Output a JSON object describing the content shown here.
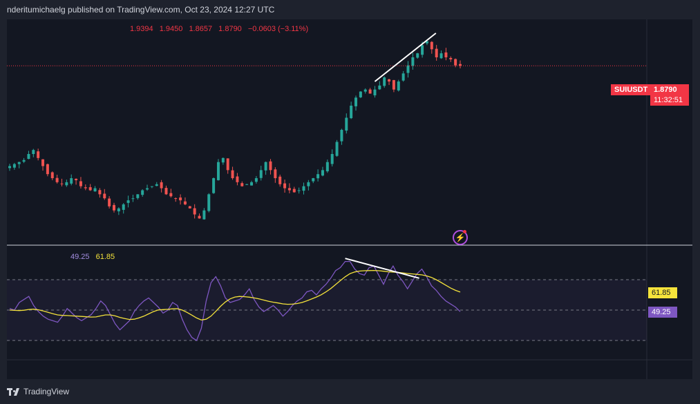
{
  "header": {
    "text": "nderitumichaelg published on TradingView.com, Oct 23, 2024 12:27 UTC"
  },
  "ohlc": {
    "open": "1.9394",
    "high": "1.9450",
    "low": "1.8657",
    "close": "1.8790",
    "change": "−0.0603 (−3.11%)"
  },
  "symbol_badge": "SUIUSDT",
  "price_badge": "1.8790",
  "countdown_badge": "11:32:51",
  "rsi_legend": {
    "rsi": "49.25",
    "ma": "61.85"
  },
  "rsi_badges": {
    "ma": "61.85",
    "rsi": "49.25"
  },
  "footer": {
    "brand": "TradingView"
  },
  "colors": {
    "up": "#26a69a",
    "down": "#ef5350",
    "rsi": "#7e57c2",
    "rsi_ma": "#f5e33b",
    "background": "#131722"
  },
  "chart_data": [
    {
      "type": "candlestick",
      "symbol": "SUIUSDT",
      "last_close": 1.879,
      "y_range_approx": [
        1.48,
        1.96
      ],
      "price_path": [
        1.63,
        1.635,
        1.64,
        1.645,
        1.66,
        1.67,
        1.65,
        1.63,
        1.61,
        1.6,
        1.59,
        1.585,
        1.59,
        1.6,
        1.595,
        1.58,
        1.575,
        1.57,
        1.575,
        1.56,
        1.55,
        1.53,
        1.52,
        1.525,
        1.535,
        1.545,
        1.55,
        1.56,
        1.57,
        1.575,
        1.58,
        1.585,
        1.575,
        1.56,
        1.555,
        1.55,
        1.545,
        1.535,
        1.525,
        1.51,
        1.5,
        1.52,
        1.56,
        1.6,
        1.64,
        1.65,
        1.62,
        1.6,
        1.59,
        1.58,
        1.585,
        1.59,
        1.6,
        1.62,
        1.64,
        1.62,
        1.6,
        1.585,
        1.575,
        1.57,
        1.565,
        1.57,
        1.58,
        1.59,
        1.6,
        1.61,
        1.62,
        1.64,
        1.66,
        1.69,
        1.72,
        1.75,
        1.78,
        1.8,
        1.815,
        1.82,
        1.81,
        1.82,
        1.83,
        1.85,
        1.84,
        1.82,
        1.84,
        1.86,
        1.88,
        1.9,
        1.91,
        1.93,
        1.94,
        1.92,
        1.9,
        1.91,
        1.9,
        1.895,
        1.88,
        1.879
      ],
      "annotation": "rising trendline over the recent highs"
    },
    {
      "type": "line",
      "name": "RSI",
      "last_values": {
        "rsi": 49.25,
        "ma": 61.85
      },
      "rsi_path": [
        51,
        50,
        55,
        57,
        59,
        53,
        49,
        46,
        44,
        43,
        42,
        46,
        51,
        48,
        45,
        43,
        45,
        47,
        51,
        56,
        53,
        47,
        41,
        37,
        40,
        43,
        49,
        53,
        56,
        58,
        55,
        52,
        48,
        50,
        55,
        53,
        44,
        37,
        32,
        30,
        38,
        56,
        68,
        72,
        66,
        58,
        55,
        56,
        57,
        60,
        64,
        57,
        52,
        49,
        51,
        53,
        50,
        46,
        49,
        53,
        56,
        58,
        62,
        63,
        60,
        64,
        67,
        71,
        76,
        78,
        82,
        82,
        77,
        74,
        73,
        78,
        79,
        73,
        67,
        74,
        79,
        73,
        69,
        64,
        69,
        74,
        77,
        72,
        66,
        63,
        59,
        56,
        54,
        52,
        49
      ],
      "ma_path": [
        50,
        49.8,
        49.7,
        49.9,
        50.4,
        50.6,
        50.2,
        49.4,
        48.5,
        47.6,
        46.8,
        46.5,
        46.4,
        46.2,
        46,
        45.8,
        45.6,
        45.4,
        45.5,
        46.2,
        46.8,
        46.8,
        46.2,
        45.2,
        44.4,
        43.8,
        44,
        44.9,
        46,
        47.5,
        49,
        50.1,
        50.3,
        50.5,
        50.8,
        50.9,
        50,
        48.5,
        46.7,
        44.8,
        43.5,
        44,
        46,
        49.2,
        52.5,
        55.3,
        57.4,
        58.6,
        59,
        58.8,
        58.5,
        58,
        57.4,
        56.6,
        55.8,
        55.2,
        54.7,
        54.1,
        53.8,
        53.9,
        54.3,
        55,
        56.1,
        57.3,
        58.6,
        60.1,
        62,
        64.2,
        66.8,
        69.4,
        71.9,
        74,
        75.1,
        75.7,
        75.9,
        76,
        76.1,
        75.9,
        75.6,
        75.2,
        75,
        74.8,
        74.5,
        74.1,
        73.8,
        73.5,
        73.2,
        72.5,
        71.5,
        70,
        68.2,
        66.3,
        64.5,
        63,
        61.85
      ],
      "levels": [
        70,
        50,
        30
      ],
      "annotation": "falling line over the recent RSI highs"
    }
  ]
}
